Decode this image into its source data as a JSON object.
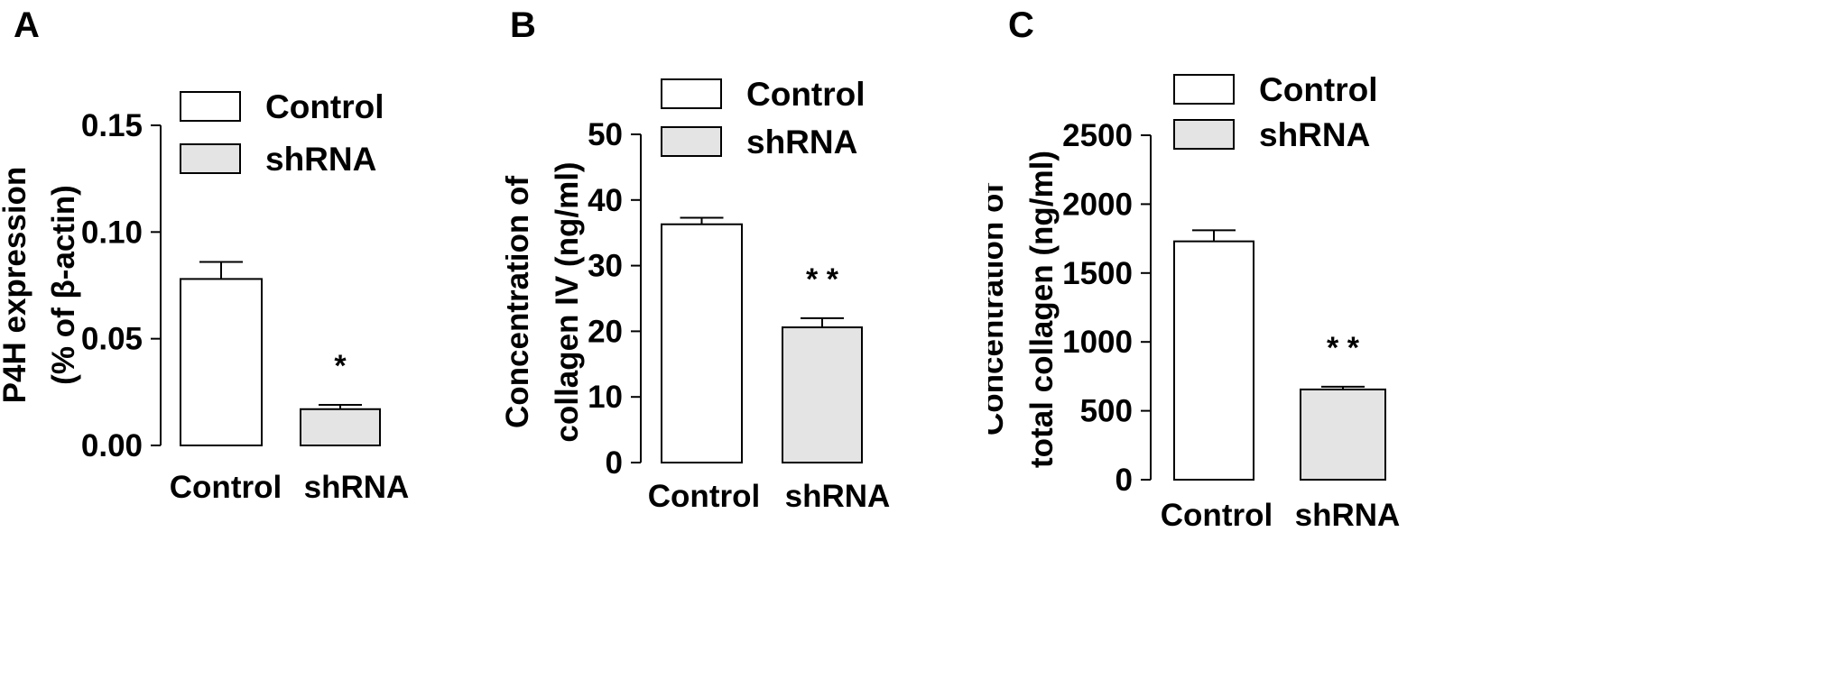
{
  "figure": {
    "panels": [
      "A",
      "B",
      "C"
    ]
  },
  "legend": {
    "control_label": "Control",
    "shrna_label": "shRNA"
  },
  "colors": {
    "control_fill": "#ffffff",
    "shrna_fill": "#e4e4e4",
    "stroke": "#000000"
  },
  "chart_data": [
    {
      "type": "bar",
      "panel": "A",
      "categories": [
        "Control",
        "shRNA"
      ],
      "values": [
        0.078,
        0.017
      ],
      "errors": [
        0.008,
        0.002
      ],
      "significance": [
        "",
        "*"
      ],
      "ylabel_lines": [
        "P4H expression",
        "(% of β-actin)"
      ],
      "ylim": [
        0,
        0.15
      ],
      "yticks": [
        0.0,
        0.05,
        0.1,
        0.15
      ],
      "ytick_labels": [
        "0.00",
        "0.05",
        "0.10",
        "0.15"
      ],
      "legend": [
        "Control",
        "shRNA"
      ],
      "legend_position": "top-right"
    },
    {
      "type": "bar",
      "panel": "B",
      "categories": [
        "Control",
        "shRNA"
      ],
      "values": [
        36.3,
        20.6
      ],
      "errors": [
        1.0,
        1.4
      ],
      "significance": [
        "",
        "* *"
      ],
      "ylabel_lines": [
        "Concentration of",
        "collagen IV (ng/ml)"
      ],
      "ylim": [
        0,
        50
      ],
      "yticks": [
        0,
        10,
        20,
        30,
        40,
        50
      ],
      "ytick_labels": [
        "0",
        "10",
        "20",
        "30",
        "40",
        "50"
      ],
      "legend": [
        "Control",
        "shRNA"
      ],
      "legend_position": "top-right"
    },
    {
      "type": "bar",
      "panel": "C",
      "categories": [
        "Control",
        "shRNA"
      ],
      "values": [
        1730,
        655
      ],
      "errors": [
        80,
        20
      ],
      "significance": [
        "",
        "* *"
      ],
      "ylabel_lines": [
        "Concentration of",
        "total collagen (ng/ml)"
      ],
      "ylim": [
        0,
        2500
      ],
      "yticks": [
        0,
        500,
        1000,
        1500,
        2000,
        2500
      ],
      "ytick_labels": [
        "0",
        "500",
        "1000",
        "1500",
        "2000",
        "2500"
      ],
      "legend": [
        "Control",
        "shRNA"
      ],
      "legend_position": "top-right"
    }
  ]
}
